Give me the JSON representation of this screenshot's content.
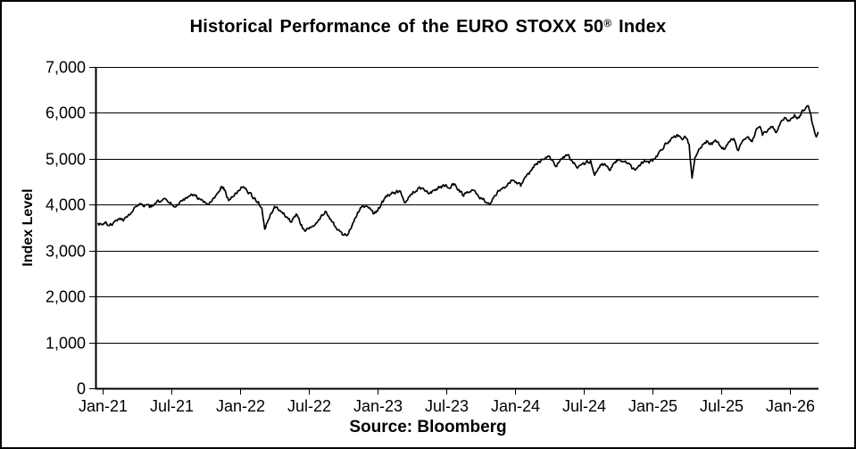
{
  "chart_data": {
    "type": "line",
    "title_before": "Historical Performance of the EURO STOXX 50",
    "title_sup": "®",
    "title_after": " Index",
    "ylabel": "Index Level",
    "xlabel": "",
    "source": "Source: Bloomberg",
    "background_color": "#ffffff",
    "line_color": "#000000",
    "grid": true,
    "legend": "none",
    "ylim": [
      0,
      7000
    ],
    "y_ticks": [
      {
        "value": 0,
        "label": "0"
      },
      {
        "value": 1000,
        "label": "1,000"
      },
      {
        "value": 2000,
        "label": "2,000"
      },
      {
        "value": 3000,
        "label": "3,000"
      },
      {
        "value": 4000,
        "label": "4,000"
      },
      {
        "value": 5000,
        "label": "5,000"
      },
      {
        "value": 6000,
        "label": "6,000"
      },
      {
        "value": 7000,
        "label": "7,000"
      }
    ],
    "x_ticks": [
      {
        "month_offset": 0,
        "label": "Jan-21"
      },
      {
        "month_offset": 6,
        "label": "Jul-21"
      },
      {
        "month_offset": 12,
        "label": "Jan-22"
      },
      {
        "month_offset": 18,
        "label": "Jul-22"
      },
      {
        "month_offset": 24,
        "label": "Jan-23"
      },
      {
        "month_offset": 30,
        "label": "Jul-23"
      },
      {
        "month_offset": 36,
        "label": "Jan-24"
      },
      {
        "month_offset": 42,
        "label": "Jul-24"
      },
      {
        "month_offset": 48,
        "label": "Jan-25"
      },
      {
        "month_offset": 54,
        "label": "Jul-25"
      },
      {
        "month_offset": 60,
        "label": "Jan-26"
      }
    ],
    "x_unit": "months_since_Jan_2021",
    "series": [
      {
        "name": "EURO STOXX 50 Index Level",
        "points": [
          [
            -0.4,
            3590
          ],
          [
            0.0,
            3560
          ],
          [
            0.3,
            3620
          ],
          [
            0.6,
            3545
          ],
          [
            0.9,
            3590
          ],
          [
            1.2,
            3655
          ],
          [
            1.5,
            3705
          ],
          [
            1.8,
            3645
          ],
          [
            2.2,
            3755
          ],
          [
            2.6,
            3845
          ],
          [
            3.0,
            3965
          ],
          [
            3.4,
            4015
          ],
          [
            3.7,
            3990
          ],
          [
            4.1,
            3940
          ],
          [
            4.5,
            4000
          ],
          [
            4.9,
            4070
          ],
          [
            5.3,
            4125
          ],
          [
            5.7,
            4060
          ],
          [
            6.0,
            4005
          ],
          [
            6.4,
            3955
          ],
          [
            6.8,
            4080
          ],
          [
            7.2,
            4135
          ],
          [
            7.6,
            4185
          ],
          [
            8.0,
            4220
          ],
          [
            8.4,
            4140
          ],
          [
            8.8,
            4055
          ],
          [
            9.2,
            4005
          ],
          [
            9.6,
            4120
          ],
          [
            10.0,
            4245
          ],
          [
            10.4,
            4395
          ],
          [
            10.7,
            4310
          ],
          [
            11.0,
            4090
          ],
          [
            11.4,
            4180
          ],
          [
            11.8,
            4300
          ],
          [
            12.1,
            4385
          ],
          [
            12.4,
            4355
          ],
          [
            12.8,
            4260
          ],
          [
            13.2,
            4135
          ],
          [
            13.6,
            4065
          ],
          [
            13.9,
            3920
          ],
          [
            14.15,
            3465
          ],
          [
            14.45,
            3660
          ],
          [
            14.7,
            3815
          ],
          [
            15.0,
            3960
          ],
          [
            15.4,
            3870
          ],
          [
            15.8,
            3820
          ],
          [
            16.2,
            3690
          ],
          [
            16.5,
            3620
          ],
          [
            16.9,
            3795
          ],
          [
            17.3,
            3555
          ],
          [
            17.6,
            3445
          ],
          [
            18.0,
            3475
          ],
          [
            18.4,
            3530
          ],
          [
            18.8,
            3645
          ],
          [
            19.2,
            3765
          ],
          [
            19.5,
            3850
          ],
          [
            19.9,
            3685
          ],
          [
            20.3,
            3525
          ],
          [
            20.7,
            3425
          ],
          [
            21.0,
            3340
          ],
          [
            21.3,
            3325
          ],
          [
            21.7,
            3490
          ],
          [
            22.1,
            3720
          ],
          [
            22.5,
            3935
          ],
          [
            22.9,
            3960
          ],
          [
            23.3,
            3935
          ],
          [
            23.7,
            3805
          ],
          [
            24.0,
            3860
          ],
          [
            24.4,
            4075
          ],
          [
            24.8,
            4170
          ],
          [
            25.2,
            4235
          ],
          [
            25.6,
            4275
          ],
          [
            26.0,
            4290
          ],
          [
            26.35,
            4045
          ],
          [
            26.7,
            4165
          ],
          [
            27.1,
            4285
          ],
          [
            27.5,
            4345
          ],
          [
            27.9,
            4355
          ],
          [
            28.3,
            4305
          ],
          [
            28.7,
            4255
          ],
          [
            29.1,
            4340
          ],
          [
            29.5,
            4395
          ],
          [
            29.9,
            4415
          ],
          [
            30.3,
            4355
          ],
          [
            30.7,
            4455
          ],
          [
            31.1,
            4330
          ],
          [
            31.5,
            4185
          ],
          [
            31.9,
            4265
          ],
          [
            32.3,
            4320
          ],
          [
            32.7,
            4230
          ],
          [
            33.1,
            4135
          ],
          [
            33.5,
            4045
          ],
          [
            33.8,
            3995
          ],
          [
            34.2,
            4190
          ],
          [
            34.6,
            4300
          ],
          [
            35.0,
            4375
          ],
          [
            35.4,
            4465
          ],
          [
            35.8,
            4535
          ],
          [
            36.1,
            4490
          ],
          [
            36.5,
            4405
          ],
          [
            36.9,
            4605
          ],
          [
            37.3,
            4720
          ],
          [
            37.7,
            4870
          ],
          [
            38.1,
            4940
          ],
          [
            38.5,
            4985
          ],
          [
            38.85,
            5055
          ],
          [
            39.2,
            4970
          ],
          [
            39.55,
            4830
          ],
          [
            39.9,
            4945
          ],
          [
            40.3,
            5025
          ],
          [
            40.6,
            5085
          ],
          [
            41.0,
            4945
          ],
          [
            41.45,
            4795
          ],
          [
            41.8,
            4875
          ],
          [
            42.2,
            4925
          ],
          [
            42.6,
            4965
          ],
          [
            42.95,
            4640
          ],
          [
            43.3,
            4800
          ],
          [
            43.6,
            4895
          ],
          [
            44.0,
            4835
          ],
          [
            44.3,
            4745
          ],
          [
            44.7,
            4925
          ],
          [
            45.0,
            4985
          ],
          [
            45.4,
            4945
          ],
          [
            45.8,
            4895
          ],
          [
            46.2,
            4785
          ],
          [
            46.5,
            4755
          ],
          [
            46.9,
            4845
          ],
          [
            47.3,
            4965
          ],
          [
            47.7,
            4905
          ],
          [
            48.0,
            4945
          ],
          [
            48.4,
            5050
          ],
          [
            48.8,
            5185
          ],
          [
            49.2,
            5330
          ],
          [
            49.6,
            5425
          ],
          [
            50.0,
            5465
          ],
          [
            50.3,
            5505
          ],
          [
            50.6,
            5415
          ],
          [
            50.9,
            5460
          ],
          [
            51.2,
            5310
          ],
          [
            51.45,
            4580
          ],
          [
            51.7,
            5020
          ],
          [
            51.95,
            5140
          ],
          [
            52.2,
            5240
          ],
          [
            52.5,
            5330
          ],
          [
            52.8,
            5380
          ],
          [
            53.2,
            5310
          ],
          [
            53.5,
            5410
          ],
          [
            53.9,
            5280
          ],
          [
            54.3,
            5210
          ],
          [
            54.7,
            5375
          ],
          [
            55.1,
            5440
          ],
          [
            55.5,
            5180
          ],
          [
            55.9,
            5410
          ],
          [
            56.3,
            5475
          ],
          [
            56.7,
            5375
          ],
          [
            57.0,
            5600
          ],
          [
            57.4,
            5700
          ],
          [
            57.6,
            5510
          ],
          [
            58.1,
            5635
          ],
          [
            58.5,
            5700
          ],
          [
            58.8,
            5570
          ],
          [
            59.2,
            5800
          ],
          [
            59.6,
            5895
          ],
          [
            60.0,
            5830
          ],
          [
            60.4,
            5960
          ],
          [
            60.8,
            5895
          ],
          [
            61.1,
            6060
          ],
          [
            61.35,
            6090
          ],
          [
            61.6,
            6155
          ],
          [
            61.9,
            5830
          ],
          [
            62.1,
            5635
          ],
          [
            62.3,
            5475
          ],
          [
            62.45,
            5570
          ]
        ]
      }
    ]
  }
}
